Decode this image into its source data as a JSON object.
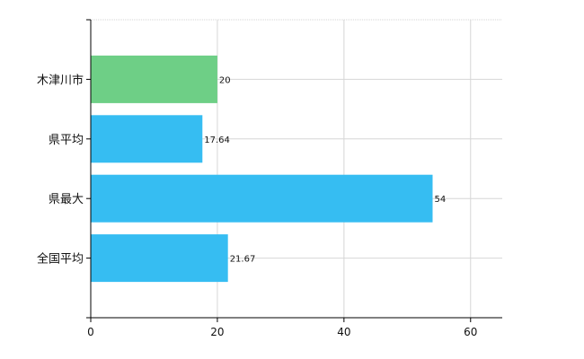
{
  "chart_data": {
    "type": "bar",
    "orientation": "horizontal",
    "title": "",
    "xlabel": "",
    "ylabel": "",
    "categories": [
      "木津川市",
      "県平均",
      "県最大",
      "全国平均"
    ],
    "values": [
      20,
      17.64,
      54,
      21.67
    ],
    "value_labels": [
      "20",
      "17.64",
      "54",
      "21.67"
    ],
    "bar_colors": [
      "#6ecf86",
      "#36bdf2",
      "#36bdf2",
      "#36bdf2"
    ],
    "xlim": [
      0,
      65
    ],
    "xticks": [
      0,
      20,
      40,
      60
    ],
    "xtick_labels": [
      "0",
      "20",
      "40",
      "60"
    ],
    "grid": true,
    "legend": "none"
  }
}
